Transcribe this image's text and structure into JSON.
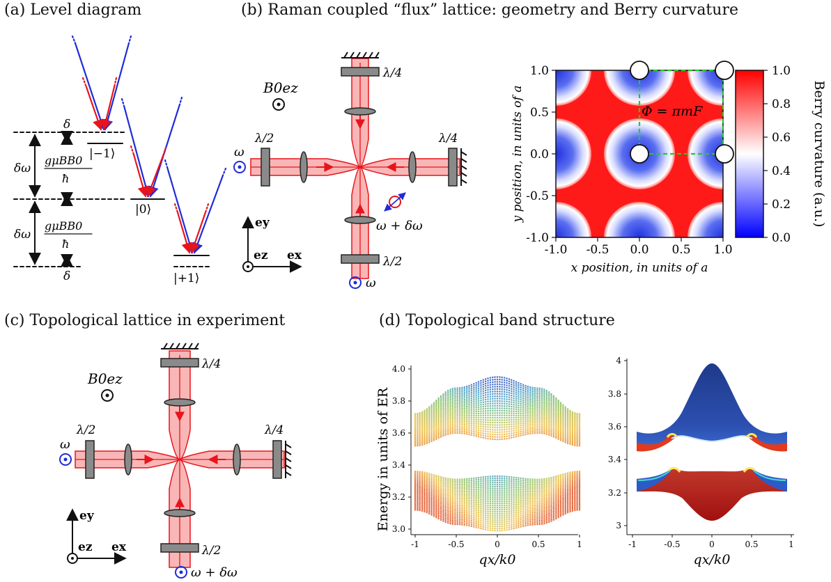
{
  "panels": {
    "a": {
      "title": "(a) Level diagram"
    },
    "b": {
      "title": "(b) Raman coupled “flux” lattice: geometry and Berry curvature"
    },
    "c": {
      "title": "(c) Topological lattice in experiment"
    },
    "d": {
      "title": "(d) Topological band structure"
    }
  },
  "level_diagram": {
    "state_m1": "|−1⟩",
    "state_0": "|0⟩",
    "state_p1": "|+1⟩",
    "delta": "δ",
    "delta_omega": "δω",
    "zeeman_num": "gμBB0",
    "zeeman_den": "ħ",
    "colors": {
      "red": "#e8141c",
      "blue": "#1f2bd8"
    }
  },
  "geometry": {
    "field": "B0ez",
    "lambda_half": "λ/2",
    "lambda_quarter": "λ/4",
    "omega": "ω",
    "omega_plus": "ω + δω",
    "ex": "ex",
    "ey": "ey",
    "ez": "ez",
    "beam_color": "#e8141c",
    "beam_fill": "#f9b6b6"
  },
  "berry": {
    "xlabel": "x position, in units of a",
    "ylabel": "y position, in units of a",
    "colorbar_label": "Berry curvature (a.u.)",
    "flux_label": "Φ = πmF",
    "xticks": [
      "-1.0",
      "-0.5",
      "0.0",
      "0.5",
      "1.0"
    ],
    "yticks": [
      "1.0",
      "0.5",
      "0.0",
      "-0.5",
      "-1.0"
    ],
    "cbticks": [
      "1.0",
      "0.8",
      "0.6",
      "0.4",
      "0.2",
      "0.0"
    ],
    "xlim": [
      -1,
      1
    ],
    "ylim": [
      -1,
      1
    ],
    "clim": [
      0,
      1
    ],
    "cell_corners": [
      [
        0,
        1
      ],
      [
        1,
        1
      ],
      [
        0,
        0
      ],
      [
        1,
        0
      ]
    ]
  },
  "band": {
    "ylabel": "Energy in units of ER",
    "xlabel": "qx/k0",
    "left_yticks": [
      "4.0",
      "3.8",
      "3.6",
      "3.4",
      "3.2",
      "3.0"
    ],
    "right_yticks": [
      "4",
      "3.8",
      "3.6",
      "3.4",
      "3.2",
      "3"
    ],
    "xticks": [
      "-1",
      "-0.5",
      "0",
      "0.5",
      "1"
    ]
  },
  "chart_data": [
    {
      "type": "heatmap",
      "title": "",
      "xlabel": "x position, in units of a",
      "ylabel": "y position, in units of a",
      "xlim": [
        -1.0,
        1.0
      ],
      "ylim": [
        -1.0,
        1.0
      ],
      "colorbar": {
        "label": "Berry curvature (a.u.)",
        "range": [
          0.0,
          1.0
        ],
        "colormap": "blue-white-red"
      },
      "low_value_centers": [
        [
          -1,
          1
        ],
        [
          0,
          1
        ],
        [
          1,
          1
        ],
        [
          -1,
          0
        ],
        [
          0,
          0
        ],
        [
          1,
          0
        ],
        [
          -1,
          -1
        ],
        [
          0,
          -1
        ],
        [
          1,
          -1
        ]
      ],
      "high_value_centers": [
        [
          -0.5,
          0.5
        ],
        [
          0.5,
          0.5
        ],
        [
          -0.5,
          -0.5
        ],
        [
          0.5,
          -0.5
        ]
      ],
      "annotation": "Φ = πmF"
    },
    {
      "type": "scatter",
      "title": "",
      "xlabel": "qx/k0",
      "ylabel": "Energy in units of ER",
      "xlim": [
        -1,
        1
      ],
      "ylim": [
        2.95,
        4.0
      ],
      "series": [
        {
          "x": [
            -1,
            -0.5,
            0,
            0.5,
            1
          ],
          "y": [
            3.72,
            3.88,
            3.95,
            3.88,
            3.72
          ]
        },
        {
          "x": [
            -1,
            -0.5,
            0,
            0.5,
            1
          ],
          "y": [
            3.52,
            3.6,
            3.56,
            3.6,
            3.52
          ]
        },
        {
          "x": [
            -1,
            -0.5,
            0,
            0.5,
            1
          ],
          "y": [
            3.36,
            3.31,
            3.33,
            3.31,
            3.36
          ]
        },
        {
          "x": [
            -1,
            -0.5,
            0,
            0.5,
            1
          ],
          "y": [
            3.12,
            3.03,
            2.99,
            3.03,
            3.12
          ]
        }
      ]
    },
    {
      "type": "area",
      "title": "",
      "xlabel": "qx/k0",
      "ylabel": "",
      "xlim": [
        -1,
        1
      ],
      "ylim": [
        2.9,
        4.0
      ],
      "series": [
        {
          "x": [
            -1,
            -0.5,
            0,
            0.5,
            1
          ],
          "y": [
            3.66,
            3.76,
            3.88,
            3.76,
            3.66
          ]
        },
        {
          "x": [
            -1,
            -0.5,
            0,
            0.5,
            1
          ],
          "y": [
            3.56,
            3.52,
            3.5,
            3.52,
            3.56
          ]
        },
        {
          "x": [
            -1,
            -0.5,
            0,
            0.5,
            1
          ],
          "y": [
            3.34,
            3.26,
            3.3,
            3.26,
            3.34
          ]
        },
        {
          "x": [
            -1,
            -0.5,
            0,
            0.5,
            1
          ],
          "y": [
            3.16,
            3.06,
            2.96,
            3.06,
            3.16
          ]
        }
      ]
    }
  ]
}
